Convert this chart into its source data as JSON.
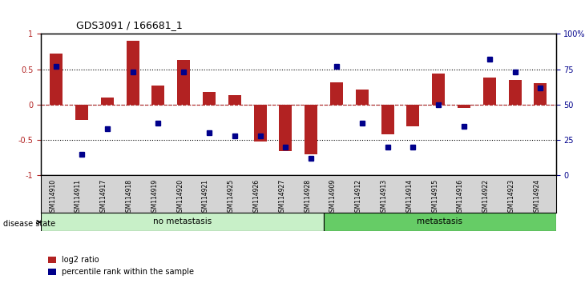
{
  "title": "GDS3091 / 166681_1",
  "samples": [
    "GSM114910",
    "GSM114911",
    "GSM114917",
    "GSM114918",
    "GSM114919",
    "GSM114920",
    "GSM114921",
    "GSM114925",
    "GSM114926",
    "GSM114927",
    "GSM114928",
    "GSM114909",
    "GSM114912",
    "GSM114913",
    "GSM114914",
    "GSM114915",
    "GSM114916",
    "GSM114922",
    "GSM114923",
    "GSM114924"
  ],
  "log2_ratio": [
    0.72,
    -0.22,
    0.1,
    0.9,
    0.27,
    0.63,
    0.18,
    0.13,
    -0.52,
    -0.65,
    -0.7,
    0.32,
    0.22,
    -0.42,
    -0.3,
    0.44,
    -0.05,
    0.38,
    0.35,
    0.3
  ],
  "percentile_rank": [
    77,
    15,
    33,
    73,
    37,
    73,
    30,
    28,
    28,
    20,
    12,
    77,
    37,
    20,
    20,
    50,
    35,
    82,
    73,
    62
  ],
  "no_metastasis_count": 11,
  "metastasis_count": 9,
  "bar_color": "#b22222",
  "dot_color": "#00008b",
  "no_meta_color": "#c8f0c8",
  "meta_color": "#66cc66",
  "ylim": [
    -1,
    1
  ],
  "y2lim": [
    0,
    100
  ],
  "yticks": [
    -1,
    -0.5,
    0,
    0.5,
    1
  ],
  "y2ticks": [
    0,
    25,
    50,
    75,
    100
  ],
  "y2ticklabels": [
    "0",
    "25",
    "50",
    "75",
    "100%"
  ],
  "hlines": [
    0.5,
    0,
    -0.5
  ],
  "legend_labels": [
    "log2 ratio",
    "percentile rank within the sample"
  ],
  "legend_colors": [
    "#b22222",
    "#00008b"
  ]
}
